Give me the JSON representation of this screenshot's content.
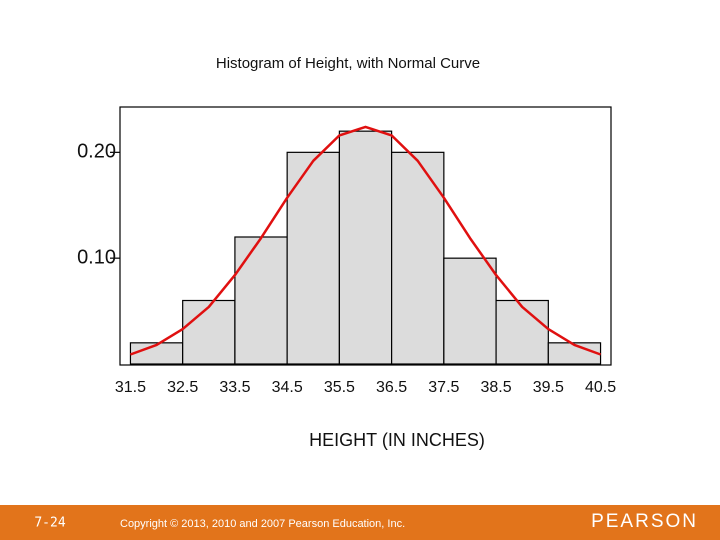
{
  "chart_data": {
    "type": "histogram",
    "title": "Histogram of Height, with Normal Curve",
    "x_label": "HEIGHT (IN INCHES)",
    "bins": [
      31.5,
      32.5,
      33.5,
      34.5,
      35.5,
      36.5,
      37.5,
      38.5,
      39.5,
      40.5
    ],
    "values": [
      0.02,
      0.06,
      0.12,
      0.2,
      0.22,
      0.2,
      0.1,
      0.06,
      0.02
    ],
    "color": "#dcdcdc",
    "curve": {
      "color": "#e01010",
      "x": [
        31.5,
        32,
        32.5,
        33,
        33.5,
        34,
        34.5,
        35,
        35.5,
        36,
        36.5,
        37,
        37.5,
        38,
        38.5,
        39,
        39.5,
        40,
        40.5
      ],
      "values": [
        0.009,
        0.018,
        0.033,
        0.054,
        0.084,
        0.119,
        0.157,
        0.192,
        0.216,
        0.224,
        0.216,
        0.192,
        0.157,
        0.119,
        0.084,
        0.054,
        0.033,
        0.018,
        0.009
      ]
    },
    "xlim": [
      31.3,
      40.7
    ],
    "ylim": [
      0,
      0.24
    ],
    "yticks": [
      {
        "value": 0.1,
        "label": "0.10"
      },
      {
        "value": 0.2,
        "label": "0.20"
      }
    ]
  },
  "footer": {
    "slide_number": "7-24",
    "copyright": "Copyright © 2013, 2010 and 2007 Pearson Education, Inc.",
    "brand": "PEARSON"
  }
}
